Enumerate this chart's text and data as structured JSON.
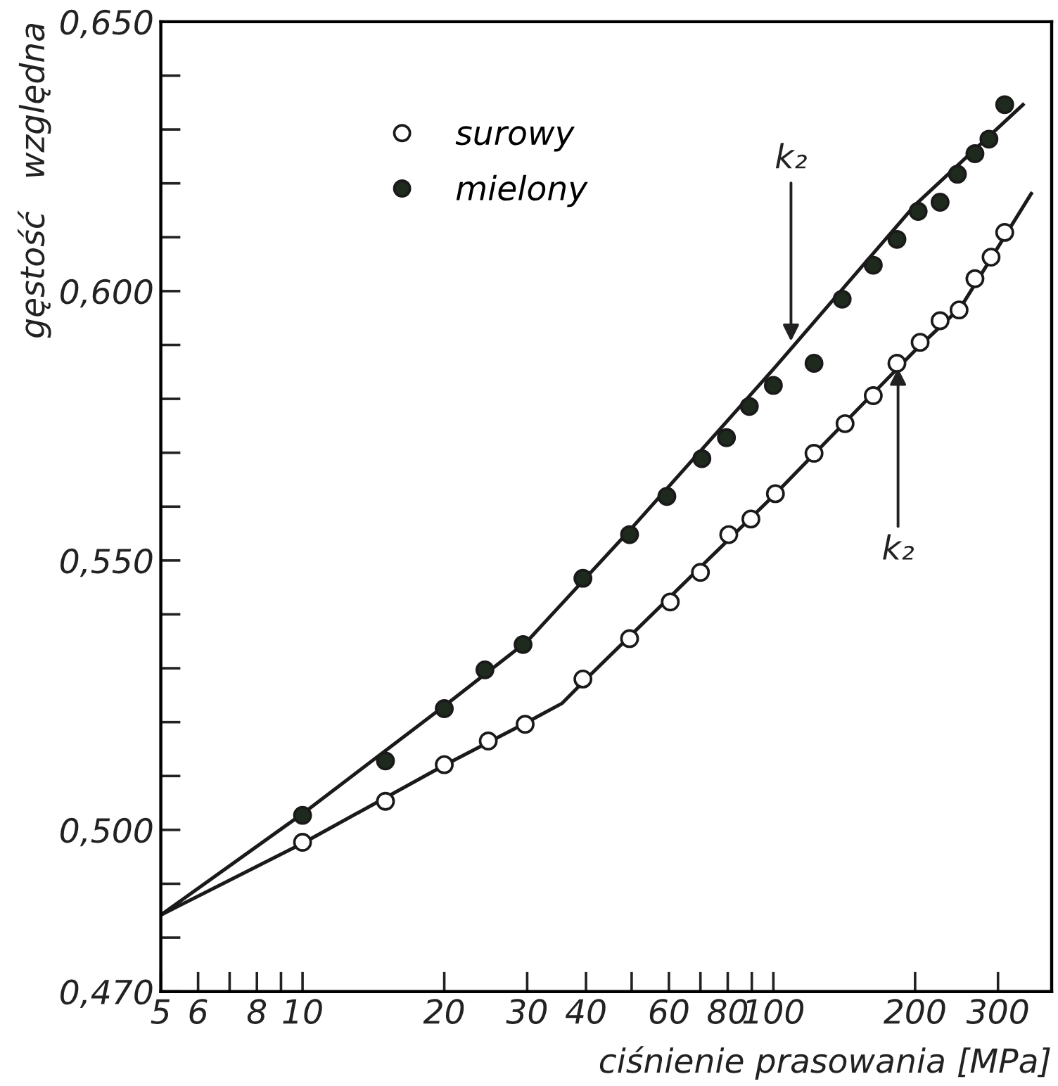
{
  "chart_data": {
    "type": "scatter",
    "xlabel": "ciśnienie prasowania [MPa]",
    "ylabel": "gęstość   względna",
    "log": "x",
    "xlim": [
      5,
      390
    ],
    "ylim": [
      0.47,
      0.65
    ],
    "grid": false,
    "legend": "top left",
    "xticks": [
      5,
      6,
      {
        "value": 7,
        "label": null
      },
      8,
      {
        "value": 9,
        "label": null
      },
      10,
      20,
      30,
      40,
      {
        "value": 50,
        "label": null
      },
      60,
      {
        "value": 70,
        "label": null
      },
      80,
      {
        "value": 90,
        "label": null
      },
      100,
      200,
      300
    ],
    "yticks": [
      {
        "value": 0.47,
        "label": "0,470"
      },
      {
        "value": 0.48,
        "label": null
      },
      {
        "value": 0.49,
        "label": null
      },
      {
        "value": 0.5,
        "label": "0,500"
      },
      {
        "value": 0.51,
        "label": null
      },
      {
        "value": 0.52,
        "label": null
      },
      {
        "value": 0.53,
        "label": null
      },
      {
        "value": 0.54,
        "label": null
      },
      {
        "value": 0.55,
        "label": "0,550"
      },
      {
        "value": 0.56,
        "label": null
      },
      {
        "value": 0.57,
        "label": null
      },
      {
        "value": 0.58,
        "label": null
      },
      {
        "value": 0.59,
        "label": null
      },
      {
        "value": 0.6,
        "label": "0,600"
      },
      {
        "value": 0.61,
        "label": null
      },
      {
        "value": 0.62,
        "label": null
      },
      {
        "value": 0.63,
        "label": null
      },
      {
        "value": 0.64,
        "label": null
      },
      {
        "value": 0.65,
        "label": "0,650"
      }
    ],
    "series": [
      {
        "type": "line",
        "color": "#1a1a1a",
        "marker": "none",
        "line_style": "solid",
        "x": [
          5,
          10,
          20,
          30,
          50,
          100,
          200,
          339
        ],
        "values": [
          0.4842,
          0.503,
          0.523,
          0.535,
          0.556,
          0.5855,
          0.616,
          0.6346
        ]
      },
      {
        "type": "line",
        "color": "#1a1a1a",
        "marker": "none",
        "line_style": "solid",
        "x": [
          5,
          10,
          20,
          30,
          35.6,
          40,
          100,
          200,
          250,
          353
        ],
        "values": [
          0.4842,
          0.4975,
          0.512,
          0.52,
          0.5235,
          0.528,
          0.562,
          0.589,
          0.597,
          0.6181
        ]
      },
      {
        "name": "surowy",
        "color": "#ffffff",
        "marker": "circle",
        "x": [
          10,
          15,
          20,
          24.8,
          29.7,
          39.4,
          49.5,
          60.4,
          70,
          80.4,
          89.6,
          101,
          122,
          142,
          163,
          183,
          205,
          226,
          248,
          268,
          290,
          310
        ],
        "values": [
          0.4977,
          0.5053,
          0.5121,
          0.5165,
          0.5196,
          0.528,
          0.5355,
          0.5423,
          0.5478,
          0.5548,
          0.5577,
          0.5624,
          0.5699,
          0.5754,
          0.5806,
          0.5866,
          0.5905,
          0.5945,
          0.5965,
          0.6023,
          0.6063,
          0.6109
        ]
      },
      {
        "name": "mielony",
        "color": "#1e2a1e",
        "marker": "circle",
        "x": [
          10,
          15,
          20,
          24.4,
          29.4,
          39.4,
          49.5,
          59.4,
          70.5,
          79.5,
          88.9,
          100,
          122,
          140,
          163,
          183,
          203,
          226,
          246,
          268,
          287,
          310
        ],
        "values": [
          0.5027,
          0.5128,
          0.5225,
          0.5297,
          0.5344,
          0.5467,
          0.5548,
          0.5619,
          0.5689,
          0.5728,
          0.5786,
          0.5825,
          0.5866,
          0.5985,
          0.6048,
          0.6096,
          0.6148,
          0.6165,
          0.6217,
          0.6255,
          0.6282,
          0.6346
        ]
      }
    ],
    "annotations": [
      {
        "text": "k₂",
        "x": 109,
        "y": 0.5907
      },
      {
        "text": "k₂",
        "x": 184,
        "y": 0.5857
      }
    ]
  }
}
